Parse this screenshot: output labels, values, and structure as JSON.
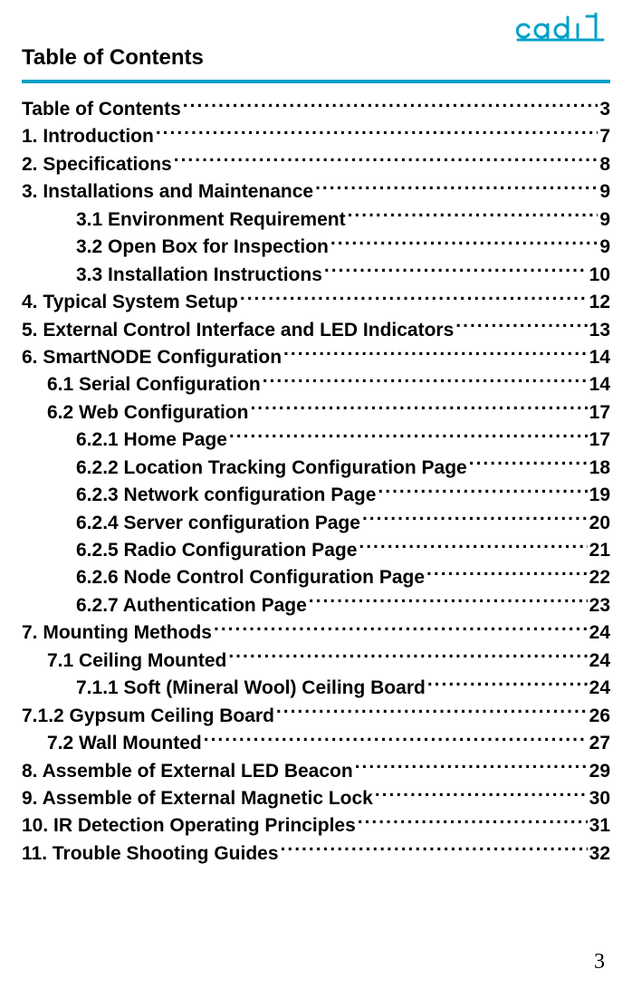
{
  "colors": {
    "accent": "#00a0c6",
    "text": "#000000",
    "background": "#ffffff"
  },
  "logo": {
    "name": "cadi-logo",
    "color": "#00a0c6"
  },
  "header": {
    "title": "Table of Contents"
  },
  "page_number": "3",
  "toc": [
    {
      "title": "Table of Contents",
      "page": "3",
      "indent": 0
    },
    {
      "title": "1.    Introduction",
      "page": "7",
      "indent": 0
    },
    {
      "title": "2. Specifications",
      "page": "8",
      "indent": 0
    },
    {
      "title": "3. Installations and Maintenance",
      "page": "9",
      "indent": 0
    },
    {
      "title": "3.1 Environment Requirement",
      "page": "9",
      "indent": 2
    },
    {
      "title": "3.2 Open Box for Inspection",
      "page": "9",
      "indent": 2
    },
    {
      "title": "3.3 Installation Instructions",
      "page": "10",
      "indent": 2
    },
    {
      "title": "4. Typical System Setup",
      "page": "12",
      "indent": 0
    },
    {
      "title": "5. External Control Interface and LED Indicators",
      "page": "13",
      "indent": 0
    },
    {
      "title": "6. SmartNODE Configuration",
      "page": "14",
      "indent": 0
    },
    {
      "title": "6.1 Serial Configuration",
      "page": "14",
      "indent": 1
    },
    {
      "title": "6.2 Web Configuration",
      "page": "17",
      "indent": 1
    },
    {
      "title": "6.2.1 Home Page",
      "page": "17",
      "indent": 2
    },
    {
      "title": "6.2.2 Location Tracking Configuration Page",
      "page": "18",
      "indent": 2
    },
    {
      "title": "6.2.3 Network configuration Page",
      "page": "19",
      "indent": 2
    },
    {
      "title": "6.2.4 Server configuration Page",
      "page": "20",
      "indent": 2
    },
    {
      "title": "6.2.5 Radio Configuration Page",
      "page": "21",
      "indent": 2
    },
    {
      "title": "6.2.6 Node Control Configuration Page",
      "page": "22",
      "indent": 2
    },
    {
      "title": "6.2.7 Authentication Page",
      "page": "23",
      "indent": 2
    },
    {
      "title": "7. Mounting Methods",
      "page": "24",
      "indent": 0
    },
    {
      "title": "7.1 Ceiling Mounted",
      "page": "24",
      "indent": 1
    },
    {
      "title": "7.1.1 Soft (Mineral Wool) Ceiling Board",
      "page": "24",
      "indent": 2
    },
    {
      "title": "7.1.2 Gypsum Ceiling Board",
      "page": "26",
      "indent": 0
    },
    {
      "title": "7.2 Wall Mounted",
      "page": "27",
      "indent": 1
    },
    {
      "title": "8. Assemble of External LED Beacon",
      "page": "29",
      "indent": 0
    },
    {
      "title": "9. Assemble of External Magnetic Lock",
      "page": "30",
      "indent": 0
    },
    {
      "title": "10. IR Detection Operating Principles",
      "page": "31",
      "indent": 0
    },
    {
      "title": "11. Trouble Shooting Guides",
      "page": "32",
      "indent": 0
    }
  ]
}
